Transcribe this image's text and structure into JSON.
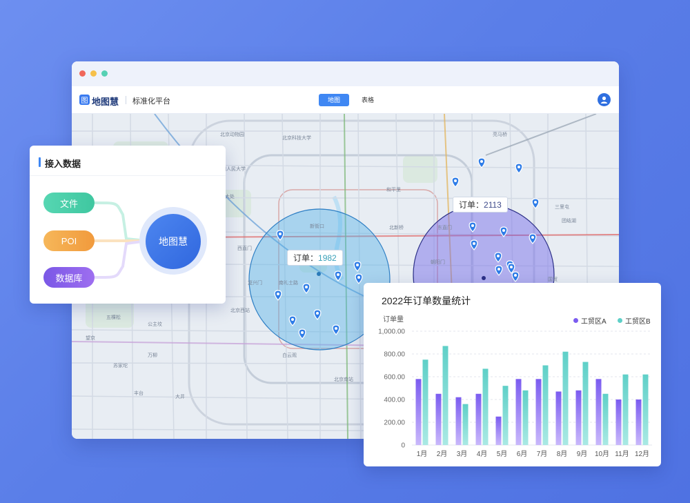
{
  "window": {
    "brand": "地图慧",
    "logo_glyph": "图",
    "platform": "标准化平台",
    "tabs": [
      {
        "label": "地图",
        "active": true
      },
      {
        "label": "表格",
        "active": false
      }
    ]
  },
  "map": {
    "clusters": [
      {
        "order_label": "订单：",
        "order_value": "1982",
        "color": "#4fb0e6"
      },
      {
        "order_label": "订单：",
        "order_value": "2113",
        "color": "#6f63e8"
      }
    ],
    "place_labels": [
      "北京动物园",
      "北京科技大学",
      "中国人民大学",
      "八大处",
      "新街口",
      "和平里",
      "北新桥",
      "东直门",
      "朝阳门",
      "西直门",
      "复兴门",
      "南礼士路",
      "北京西站",
      "白云观",
      "天坛",
      "北京南站",
      "国贸",
      "建外",
      "团结湖",
      "三里屯",
      "亮马桥",
      "呼家楼",
      "石佛营",
      "望京",
      "苏家坨",
      "万柳",
      "公主坟",
      "五棵松",
      "丰台",
      "大井"
    ]
  },
  "panel": {
    "title": "接入数据",
    "sources": [
      "文件",
      "POI",
      "数据库"
    ],
    "hub": "地图慧"
  },
  "colors": {
    "series_a": "#7b5cf0",
    "series_b": "#5fd0c8",
    "accent": "#3f87f3"
  },
  "chart_data": {
    "type": "bar",
    "title": "2022年订单数量统计",
    "ylabel": "订单量",
    "categories": [
      "1月",
      "2月",
      "3月",
      "4月",
      "5月",
      "6月",
      "7月",
      "8月",
      "9月",
      "10月",
      "11月",
      "12月"
    ],
    "series": [
      {
        "name": "工贸区A",
        "values": [
          580,
          450,
          420,
          450,
          250,
          580,
          580,
          470,
          480,
          580,
          400,
          400
        ]
      },
      {
        "name": "工贸区B",
        "values": [
          750,
          870,
          360,
          670,
          520,
          480,
          700,
          820,
          730,
          450,
          620,
          620
        ]
      }
    ],
    "yticks": [
      "0",
      "200.00",
      "400.00",
      "600.00",
      "800.00",
      "1,000.00"
    ],
    "ylim": [
      0,
      1000
    ],
    "grid": true,
    "legend": "top-right"
  }
}
